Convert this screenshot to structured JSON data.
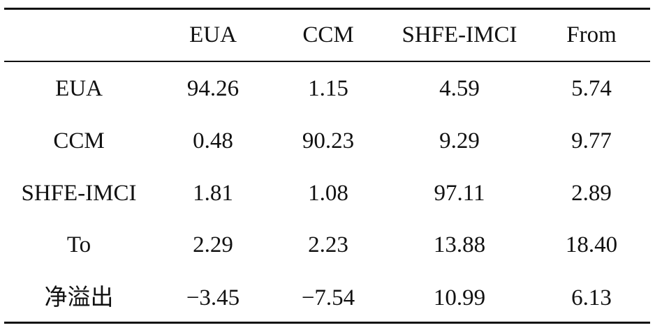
{
  "table": {
    "columns": [
      "EUA",
      "CCM",
      "SHFE-IMCI",
      "From"
    ],
    "rows": [
      {
        "label": "EUA",
        "cells": [
          "94.26",
          "1.15",
          "4.59",
          "5.74"
        ]
      },
      {
        "label": "CCM",
        "cells": [
          "0.48",
          "90.23",
          "9.29",
          "9.77"
        ]
      },
      {
        "label": "SHFE-IMCI",
        "cells": [
          "1.81",
          "1.08",
          "97.11",
          "2.89"
        ]
      },
      {
        "label": "To",
        "cells": [
          "2.29",
          "2.23",
          "13.88",
          "18.40"
        ]
      },
      {
        "label": "净溢出",
        "cells": [
          "−3.45",
          "−7.54",
          "10.99",
          "6.13"
        ]
      }
    ]
  }
}
